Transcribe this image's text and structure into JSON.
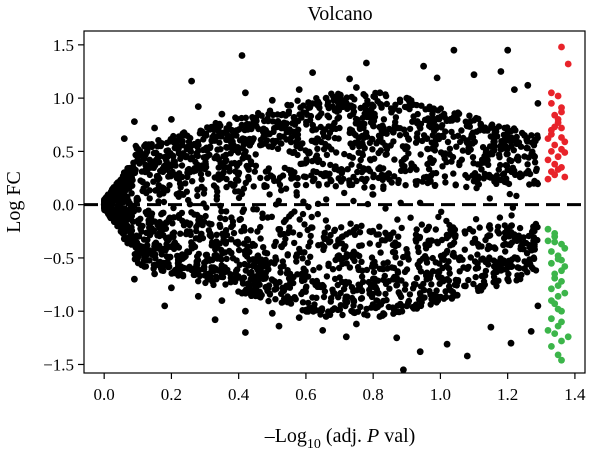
{
  "chart_data": {
    "type": "scatter",
    "title": "Volcano",
    "xlabel": {
      "prefix": "–Log",
      "subscript": "10",
      "middle": " (adj. ",
      "italic": "P",
      "suffix": " val)"
    },
    "ylabel": "Log FC",
    "xlim": [
      -0.06,
      1.43
    ],
    "ylim": [
      -1.58,
      1.63
    ],
    "x_ticks": [
      0.0,
      0.2,
      0.4,
      0.6,
      0.8,
      1.0,
      1.2,
      1.4
    ],
    "x_tick_labels": [
      "0.0",
      "0.2",
      "0.4",
      "0.6",
      "0.8",
      "1.0",
      "1.2",
      "1.4"
    ],
    "y_ticks": [
      1.5,
      1.0,
      0.5,
      0.0,
      -0.5,
      -1.0,
      -1.5
    ],
    "y_tick_labels": [
      "1.5",
      "1.0",
      "0.5",
      "0.0",
      "−0.5",
      "−1.0",
      "−1.5"
    ],
    "grid": false,
    "legend": "none",
    "reference_line": {
      "y": 0,
      "style": "dashed",
      "color": "#000000"
    },
    "colors": {
      "not_significant": "#000000",
      "up": "#e8232a",
      "down": "#3cb54a"
    },
    "series": [
      {
        "color_key": "up",
        "points": [
          [
            1.32,
            0.24
          ],
          [
            1.33,
            0.31
          ],
          [
            1.34,
            0.38
          ],
          [
            1.35,
            0.45
          ],
          [
            1.36,
            0.52
          ],
          [
            1.37,
            0.59
          ],
          [
            1.33,
            0.66
          ],
          [
            1.34,
            0.73
          ],
          [
            1.35,
            0.8
          ],
          [
            1.36,
            0.87
          ],
          [
            1.33,
            0.95
          ],
          [
            1.35,
            1.02
          ],
          [
            1.34,
            0.28
          ],
          [
            1.36,
            0.35
          ],
          [
            1.32,
            0.42
          ],
          [
            1.37,
            0.49
          ],
          [
            1.34,
            0.56
          ],
          [
            1.36,
            0.63
          ],
          [
            1.33,
            0.7
          ],
          [
            1.35,
            0.77
          ],
          [
            1.34,
            0.84
          ],
          [
            1.36,
            0.91
          ],
          [
            1.33,
            1.05
          ],
          [
            1.38,
            1.32
          ],
          [
            1.36,
            1.48
          ],
          [
            1.32,
            0.62
          ],
          [
            1.37,
            0.26
          ],
          [
            1.35,
            0.33
          ],
          [
            1.33,
            0.5
          ],
          [
            1.36,
            0.72
          ]
        ]
      },
      {
        "color_key": "down",
        "points": [
          [
            1.32,
            -0.23
          ],
          [
            1.34,
            -0.3
          ],
          [
            1.36,
            -0.37
          ],
          [
            1.33,
            -0.44
          ],
          [
            1.35,
            -0.51
          ],
          [
            1.37,
            -0.58
          ],
          [
            1.34,
            -0.65
          ],
          [
            1.36,
            -0.72
          ],
          [
            1.33,
            -0.79
          ],
          [
            1.35,
            -0.86
          ],
          [
            1.34,
            -0.93
          ],
          [
            1.36,
            -1.0
          ],
          [
            1.33,
            -1.07
          ],
          [
            1.35,
            -1.14
          ],
          [
            1.34,
            -1.21
          ],
          [
            1.36,
            -1.28
          ],
          [
            1.33,
            -1.33
          ],
          [
            1.35,
            -1.41
          ],
          [
            1.36,
            -1.46
          ],
          [
            1.34,
            -0.27
          ],
          [
            1.32,
            -0.34
          ],
          [
            1.37,
            -0.41
          ],
          [
            1.35,
            -0.48
          ],
          [
            1.33,
            -0.55
          ],
          [
            1.36,
            -0.62
          ],
          [
            1.34,
            -0.69
          ],
          [
            1.35,
            -0.76
          ],
          [
            1.37,
            -0.83
          ],
          [
            1.33,
            -0.9
          ],
          [
            1.36,
            -1.1
          ],
          [
            1.32,
            -1.18
          ],
          [
            1.38,
            -1.24
          ],
          [
            1.34,
            -0.35
          ],
          [
            1.36,
            -0.52
          ],
          [
            1.35,
            -0.98
          ]
        ]
      },
      {
        "color_key": "not_significant",
        "points": [
          [
            0.0,
            0.0
          ],
          [
            0.01,
            0.05
          ],
          [
            0.01,
            -0.06
          ],
          [
            0.02,
            0.1
          ],
          [
            0.02,
            -0.12
          ],
          [
            0.03,
            0.14
          ],
          [
            0.03,
            -0.16
          ],
          [
            0.04,
            0.18
          ],
          [
            0.04,
            -0.2
          ],
          [
            0.05,
            0.22
          ],
          [
            0.05,
            -0.25
          ],
          [
            0.06,
            0.3
          ],
          [
            0.06,
            -0.32
          ],
          [
            0.07,
            0.34
          ],
          [
            0.07,
            -0.36
          ],
          [
            0.08,
            0.3
          ],
          [
            0.08,
            -0.3
          ],
          [
            0.09,
            0.78
          ],
          [
            0.09,
            -0.7
          ],
          [
            0.15,
            0.72
          ],
          [
            0.15,
            -0.65
          ],
          [
            0.2,
            0.8
          ],
          [
            0.2,
            -0.78
          ],
          [
            0.28,
            0.92
          ],
          [
            0.28,
            -0.86
          ],
          [
            0.35,
            0.85
          ],
          [
            0.35,
            -0.9
          ],
          [
            0.42,
            1.05
          ],
          [
            0.42,
            -1.0
          ],
          [
            0.5,
            0.98
          ],
          [
            0.5,
            -1.02
          ],
          [
            0.58,
            1.08
          ],
          [
            0.58,
            -1.06
          ],
          [
            0.66,
            1.0
          ],
          [
            0.66,
            -1.05
          ],
          [
            0.75,
            1.1
          ],
          [
            0.75,
            -1.12
          ],
          [
            0.82,
            1.05
          ],
          [
            0.82,
            -1.05
          ],
          [
            0.9,
            1.0
          ],
          [
            0.9,
            -0.95
          ],
          [
            0.98,
            0.9
          ],
          [
            0.98,
            -0.9
          ],
          [
            1.05,
            0.8
          ],
          [
            1.05,
            -0.85
          ],
          [
            1.12,
            0.75
          ],
          [
            1.12,
            -0.8
          ],
          [
            1.2,
            0.7
          ],
          [
            1.2,
            -0.7
          ],
          [
            1.25,
            0.65
          ],
          [
            1.25,
            -0.6
          ],
          [
            0.41,
            1.4
          ],
          [
            1.04,
            1.45
          ],
          [
            1.2,
            1.45
          ],
          [
            0.73,
            1.18
          ],
          [
            0.78,
            1.33
          ],
          [
            0.99,
            1.19
          ],
          [
            1.22,
            1.08
          ],
          [
            0.26,
            1.16
          ],
          [
            0.06,
            0.62
          ],
          [
            0.87,
            -1.25
          ],
          [
            0.72,
            -1.24
          ],
          [
            0.89,
            -1.55
          ],
          [
            1.02,
            -1.31
          ],
          [
            1.21,
            -1.3
          ],
          [
            1.27,
            -1.19
          ],
          [
            0.42,
            -1.2
          ],
          [
            1.08,
            -1.42
          ],
          [
            0.94,
            -1.38
          ],
          [
            0.18,
            -0.95
          ],
          [
            0.33,
            -1.08
          ],
          [
            1.18,
            1.25
          ],
          [
            1.26,
            1.12
          ],
          [
            0.62,
            1.24
          ],
          [
            0.95,
            1.3
          ],
          [
            1.1,
            1.22
          ],
          [
            0.52,
            -1.14
          ],
          [
            0.65,
            -1.18
          ],
          [
            1.15,
            -1.15
          ],
          [
            1.29,
            -0.95
          ],
          [
            1.29,
            0.95
          ],
          [
            0.12,
            0.55
          ],
          [
            0.12,
            -0.58
          ],
          [
            0.22,
            0.52
          ],
          [
            0.22,
            -0.55
          ],
          [
            0.32,
            0.6
          ],
          [
            0.32,
            -0.62
          ],
          [
            0.48,
            0.66
          ],
          [
            0.48,
            -0.68
          ],
          [
            0.62,
            0.7
          ],
          [
            0.62,
            -0.72
          ],
          [
            0.76,
            0.74
          ],
          [
            0.76,
            -0.76
          ],
          [
            0.86,
            0.68
          ],
          [
            0.86,
            -0.7
          ],
          [
            0.96,
            0.62
          ],
          [
            0.96,
            -0.64
          ],
          [
            1.08,
            0.58
          ],
          [
            1.08,
            -0.6
          ],
          [
            1.18,
            0.52
          ],
          [
            1.18,
            -0.54
          ],
          [
            1.28,
            0.45
          ],
          [
            1.28,
            -0.42
          ]
        ]
      }
    ]
  }
}
